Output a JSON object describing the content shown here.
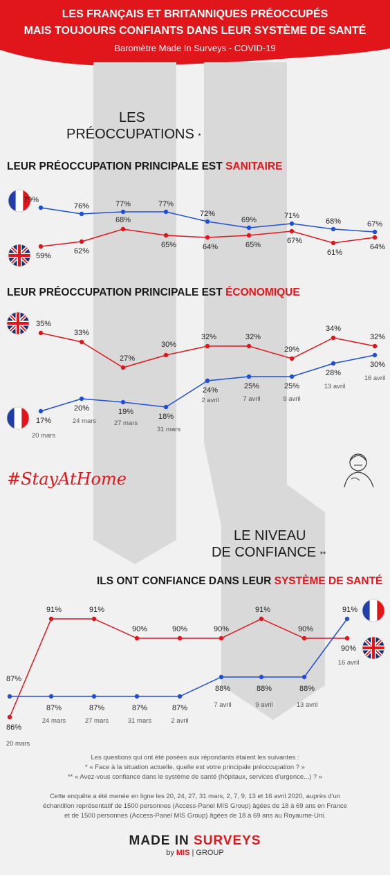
{
  "header": {
    "line1": "LES FRANÇAIS ET BRITANNIQUES PRÉOCCUPÉS",
    "line2": "MAIS TOUJOURS CONFIANTS DANS LEUR SYSTÈME DE SANTÉ",
    "line3": "Baromètre Made In Surveys - COVID-19"
  },
  "section1": {
    "line1": "LES",
    "line2": "PRÉOCCUPATIONS",
    "asterisk": "*"
  },
  "section2": {
    "line1": "LE NIVEAU",
    "line2": "DE CONFIANCE",
    "asterisk": "**"
  },
  "hashtag": "#StayAtHome",
  "colors": {
    "france": "#1f4fd6",
    "uk": "#e0161b",
    "header": "#e0161b"
  },
  "chart_data": [
    {
      "type": "line",
      "title_prefix": "LEUR PRÉOCCUPATION PRINCIPALE EST ",
      "title_highlight": "SANITAIRE",
      "x": [
        "20 mars",
        "24 mars",
        "27 mars",
        "31 mars",
        "2 avril",
        "7 avril",
        "9 avril",
        "13 avril",
        "16 avril"
      ],
      "series": [
        {
          "key": "france",
          "values": [
            79,
            76,
            77,
            77,
            72,
            69,
            71,
            68,
            67
          ],
          "labels": [
            "79%",
            "76%",
            "77%",
            "77%",
            "72%",
            "69%",
            "71%",
            "68%",
            "67%"
          ]
        },
        {
          "key": "uk",
          "values": [
            59,
            62,
            68,
            65,
            64,
            65,
            67,
            61,
            64
          ],
          "labels": [
            "59%",
            "62%",
            "68%",
            "65%",
            "64%",
            "65%",
            "67%",
            "61%",
            "64%"
          ]
        }
      ]
    },
    {
      "type": "line",
      "title_prefix": "LEUR PRÉOCCUPATION PRINCIPALE EST ",
      "title_highlight": "ÉCONOMIQUE",
      "x": [
        "20 mars",
        "24 mars",
        "27 mars",
        "31 mars",
        "2 avril",
        "7 avril",
        "9 avril",
        "13 avril",
        "16 avril"
      ],
      "date_labels": [
        "20 mars",
        "24 mars",
        "27 mars",
        "31 mars",
        "2 avril",
        "7 avril",
        "9 avril",
        "13 avril",
        "16 avril"
      ],
      "series": [
        {
          "key": "uk",
          "values": [
            35,
            33,
            27,
            30,
            32,
            32,
            29,
            34,
            32
          ],
          "labels": [
            "35%",
            "33%",
            "27%",
            "30%",
            "32%",
            "32%",
            "29%",
            "34%",
            "32%"
          ]
        },
        {
          "key": "france",
          "values": [
            17,
            20,
            19,
            18,
            24,
            25,
            25,
            28,
            30
          ],
          "labels": [
            "17%",
            "20%",
            "19%",
            "18%",
            "24%",
            "25%",
            "25%",
            "28%",
            "30%"
          ]
        }
      ]
    },
    {
      "type": "line",
      "title_prefix": "ILS ONT CONFIANCE DANS LEUR ",
      "title_highlight": "SYSTÈME DE SANTÉ",
      "x": [
        "20 mars",
        "24 mars",
        "27 mars",
        "31 mars",
        "2 avril",
        "7 avril",
        "9 avril",
        "13 avril",
        "16 avril"
      ],
      "date_labels": [
        "20 mars",
        "24 mars",
        "27 mars",
        "31 mars",
        "2 avril",
        "7 avril",
        "9 avril",
        "13 avril",
        "16 avril"
      ],
      "series": [
        {
          "key": "uk",
          "values": [
            86,
            91,
            91,
            90,
            90,
            90,
            91,
            90,
            90
          ],
          "labels": [
            "86%",
            "91%",
            "91%",
            "90%",
            "90%",
            "90%",
            "91%",
            "90%",
            "90%"
          ]
        },
        {
          "key": "france",
          "values": [
            87,
            87,
            87,
            87,
            87,
            88,
            88,
            88,
            91
          ],
          "labels": [
            "87%",
            "87%",
            "87%",
            "87%",
            "87%",
            "88%",
            "88%",
            "88%",
            "91%"
          ]
        }
      ]
    }
  ],
  "notes": {
    "q_intro": "Les questions qui ont été posées aux répondants étaient les suivantes :",
    "q1": "* « Face à la situation actuelle, quelle est votre principale préoccupation ? »",
    "q2": "** « Avez-vous confiance dans le système de santé (hôpitaux, services d'urgence...) ? »",
    "m1": "Cette enquête a été menée en ligne les 20, 24, 27, 31 mars, 2, 7, 9, 13 et 16 avril 2020, auprès d'un",
    "m2": "échantillon représentatif de 1500 personnes (Access-Panel MIS Group) âgées de 18 à 69 ans en France",
    "m3": "et de 1500 personnes (Access-Panel MIS Group) âgées de 18 à 69 ans au Royaume-Uni."
  },
  "logo": {
    "made_in": "MADE IN ",
    "surveys": "SURVEYS",
    "by": "by ",
    "mis": "MIS",
    "group": "| GROUP"
  }
}
